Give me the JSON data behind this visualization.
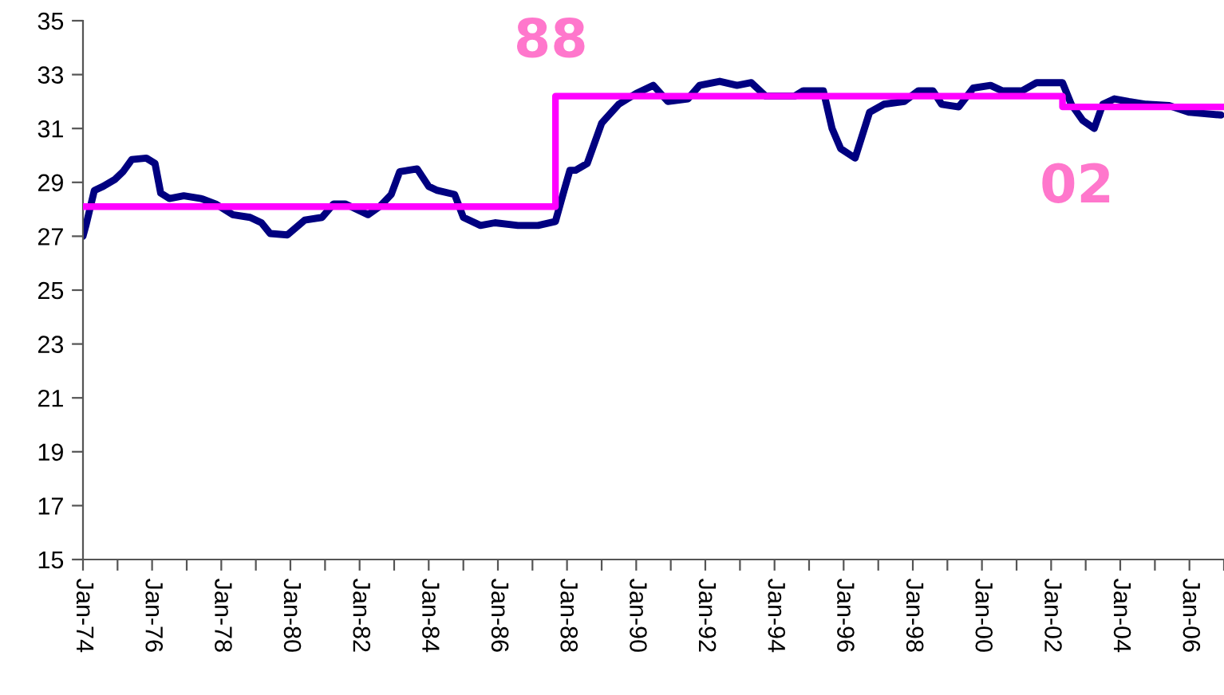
{
  "chart_data": {
    "type": "line",
    "xlim": [
      "1974-01",
      "2007-01"
    ],
    "ylim": [
      15,
      35
    ],
    "yticks": [
      15,
      17,
      19,
      21,
      23,
      25,
      27,
      29,
      31,
      33,
      35
    ],
    "xticks": [
      {
        "value": "1974-01",
        "label": "Jan-74"
      },
      {
        "value": "1975-01",
        "label": null
      },
      {
        "value": "1976-01",
        "label": "Jan-76"
      },
      {
        "value": "1977-01",
        "label": null
      },
      {
        "value": "1978-01",
        "label": "Jan-78"
      },
      {
        "value": "1979-01",
        "label": null
      },
      {
        "value": "1980-01",
        "label": "Jan-80"
      },
      {
        "value": "1981-01",
        "label": null
      },
      {
        "value": "1982-01",
        "label": "Jan-82"
      },
      {
        "value": "1983-01",
        "label": null
      },
      {
        "value": "1984-01",
        "label": "Jan-84"
      },
      {
        "value": "1985-01",
        "label": null
      },
      {
        "value": "1986-01",
        "label": "Jan-86"
      },
      {
        "value": "1987-01",
        "label": null
      },
      {
        "value": "1988-01",
        "label": "Jan-88"
      },
      {
        "value": "1989-01",
        "label": null
      },
      {
        "value": "1990-01",
        "label": "Jan-90"
      },
      {
        "value": "1991-01",
        "label": null
      },
      {
        "value": "1992-01",
        "label": "Jan-92"
      },
      {
        "value": "1993-01",
        "label": null
      },
      {
        "value": "1994-01",
        "label": "Jan-94"
      },
      {
        "value": "1995-01",
        "label": null
      },
      {
        "value": "1996-01",
        "label": "Jan-96"
      },
      {
        "value": "1997-01",
        "label": null
      },
      {
        "value": "1998-01",
        "label": "Jan-98"
      },
      {
        "value": "1999-01",
        "label": null
      },
      {
        "value": "2000-01",
        "label": "Jan-00"
      },
      {
        "value": "2001-01",
        "label": null
      },
      {
        "value": "2002-01",
        "label": "Jan-02"
      },
      {
        "value": "2003-01",
        "label": null
      },
      {
        "value": "2004-01",
        "label": "Jan-04"
      },
      {
        "value": "2005-01",
        "label": null
      },
      {
        "value": "2006-01",
        "label": "Jan-06"
      },
      {
        "value": "2007-01",
        "label": null
      }
    ],
    "grid": false,
    "legend": false,
    "series": [
      {
        "color": "#000080",
        "x": [
          "1974-01",
          "1974-02",
          "1974-05",
          "1974-08",
          "1974-12",
          "1975-03",
          "1975-06",
          "1975-11",
          "1976-02",
          "1976-04",
          "1976-07",
          "1976-12",
          "1977-06",
          "1977-11",
          "1978-05",
          "1978-11",
          "1979-03",
          "1979-06",
          "1979-12",
          "1980-06",
          "1980-12",
          "1981-04",
          "1981-08",
          "1982-04",
          "1982-08",
          "1982-12",
          "1983-03",
          "1983-09",
          "1984-01",
          "1984-04",
          "1984-10",
          "1985-01",
          "1985-07",
          "1985-12",
          "1986-08",
          "1987-03",
          "1987-09",
          "1987-12",
          "1988-02",
          "1988-04",
          "1988-08",
          "1989-01",
          "1989-07",
          "1990-01",
          "1990-07",
          "1990-12",
          "1991-07",
          "1991-11",
          "1992-06",
          "1992-12",
          "1993-05",
          "1993-10",
          "1994-08",
          "1994-11",
          "1995-06",
          "1995-09",
          "1995-12",
          "1996-05",
          "1996-10",
          "1997-03",
          "1997-10",
          "1998-03",
          "1998-08",
          "1998-11",
          "1999-05",
          "1999-10",
          "2000-04",
          "2000-08",
          "2001-03",
          "2001-08",
          "2002-05",
          "2002-08",
          "2002-12",
          "2003-04",
          "2003-07",
          "2003-11",
          "2004-04",
          "2004-10",
          "2005-06",
          "2006-01",
          "2006-12"
        ],
        "values": [
          27.0,
          27.4,
          28.7,
          28.85,
          29.1,
          29.4,
          29.85,
          29.9,
          29.7,
          28.6,
          28.4,
          28.5,
          28.4,
          28.2,
          27.8,
          27.7,
          27.5,
          27.1,
          27.05,
          27.6,
          27.7,
          28.2,
          28.2,
          27.8,
          28.1,
          28.55,
          29.4,
          29.5,
          28.85,
          28.7,
          28.55,
          27.7,
          27.4,
          27.5,
          27.4,
          27.4,
          27.55,
          28.7,
          29.45,
          29.45,
          29.7,
          31.2,
          31.9,
          32.3,
          32.6,
          32.0,
          32.1,
          32.6,
          32.75,
          32.6,
          32.7,
          32.2,
          32.2,
          32.4,
          32.4,
          31.0,
          30.25,
          29.9,
          31.6,
          31.9,
          32.0,
          32.4,
          32.4,
          31.9,
          31.8,
          32.5,
          32.6,
          32.4,
          32.4,
          32.7,
          32.7,
          31.9,
          31.3,
          31.0,
          31.9,
          32.1,
          32.0,
          31.9,
          31.85,
          31.6,
          31.5
        ]
      },
      {
        "type": "step",
        "color": "#ff00ff",
        "x": [
          "1974-01",
          "1987-09",
          "2002-05",
          "2007-01"
        ],
        "values": [
          28.1,
          32.2,
          31.8,
          31.8
        ]
      }
    ],
    "annotations": [
      "88",
      "02"
    ]
  }
}
